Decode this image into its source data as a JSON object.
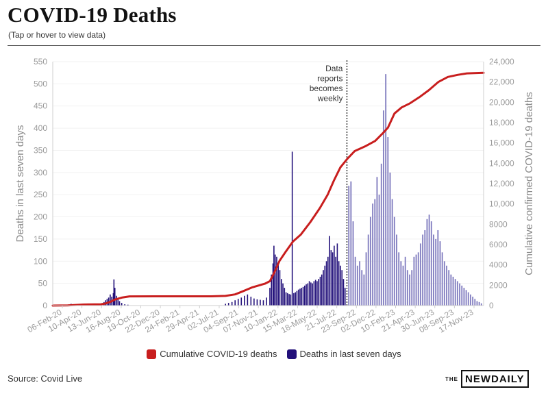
{
  "header": {
    "title": "COVID-19 Deaths",
    "subtitle": "(Tap or hover to view data)"
  },
  "footer": {
    "source": "Source: Covid Live",
    "brand_the": "THE",
    "brand_name": "NEWDAILY"
  },
  "colors": {
    "cumulative": "#c81e1e",
    "weekly": "#22107a",
    "weekly_after": "#8a86c4",
    "grid": "#f2f2f2",
    "axis": "#cfcfcf"
  },
  "chart_data": {
    "type": "bar",
    "combo": "bar + line, dual y-axis",
    "legend_position": "bottom",
    "grid": true,
    "xlabel": "",
    "ylabel_left": "Deaths in last seven days",
    "ylabel_right": "Cumulative confirmed COVID-19 deaths",
    "ylim_left": [
      0,
      550
    ],
    "ylim_right": [
      0,
      24000
    ],
    "yticks_left": [
      "0",
      "50",
      "100",
      "150",
      "200",
      "250",
      "300",
      "350",
      "400",
      "450",
      "500",
      "550"
    ],
    "yticks_right": [
      "0",
      "2000",
      "4000",
      "6000",
      "8000",
      "10,000",
      "12,000",
      "14,000",
      "16,000",
      "18,000",
      "20,000",
      "22,000",
      "24,000"
    ],
    "x_range": [
      "2020-02-06",
      "2023-11-24"
    ],
    "xticks": [
      "06-Feb-20",
      "10-Apr-20",
      "13-Jun-20",
      "16-Aug-20",
      "19-Oct-20",
      "22-Dec-20",
      "24-Feb-21",
      "29-Apr-21",
      "02-Jul-21",
      "04-Sep-21",
      "07-Nov-21",
      "10-Jan-22",
      "15-Mar-22",
      "18-May-22",
      "21-Jul-22",
      "23-Sep-22",
      "02-Dec-22",
      "10-Feb-23",
      "21-Apr-23",
      "30-Jun-23",
      "08-Sep-23",
      "17-Nov-23"
    ],
    "annotation": {
      "date": "2022-09-10",
      "lines": [
        "Data",
        "reports",
        "becomes",
        "weekly"
      ]
    },
    "series": [
      {
        "name": "Cumulative COVID-19 deaths",
        "kind": "line",
        "axis": "right",
        "points": [
          [
            "2020-02-06",
            0
          ],
          [
            "2020-03-25",
            20
          ],
          [
            "2020-05-15",
            100
          ],
          [
            "2020-07-10",
            130
          ],
          [
            "2020-07-25",
            200
          ],
          [
            "2020-08-10",
            380
          ],
          [
            "2020-08-25",
            600
          ],
          [
            "2020-09-15",
            780
          ],
          [
            "2020-10-10",
            905
          ],
          [
            "2020-12-31",
            910
          ],
          [
            "2021-06-30",
            910
          ],
          [
            "2021-08-15",
            950
          ],
          [
            "2021-09-15",
            1100
          ],
          [
            "2021-10-10",
            1400
          ],
          [
            "2021-11-10",
            1800
          ],
          [
            "2021-12-20",
            2150
          ],
          [
            "2022-01-05",
            2400
          ],
          [
            "2022-01-20",
            3300
          ],
          [
            "2022-02-05",
            4400
          ],
          [
            "2022-02-25",
            5300
          ],
          [
            "2022-03-20",
            6300
          ],
          [
            "2022-04-15",
            7000
          ],
          [
            "2022-05-15",
            8200
          ],
          [
            "2022-06-15",
            9600
          ],
          [
            "2022-07-10",
            10900
          ],
          [
            "2022-07-30",
            12300
          ],
          [
            "2022-08-20",
            13600
          ],
          [
            "2022-09-10",
            14400
          ],
          [
            "2022-10-05",
            15200
          ],
          [
            "2022-11-10",
            15700
          ],
          [
            "2022-12-10",
            16200
          ],
          [
            "2023-01-05",
            17000
          ],
          [
            "2023-01-20",
            17500
          ],
          [
            "2023-02-10",
            18900
          ],
          [
            "2023-03-05",
            19500
          ],
          [
            "2023-04-01",
            19900
          ],
          [
            "2023-05-01",
            20500
          ],
          [
            "2023-06-01",
            21200
          ],
          [
            "2023-07-01",
            22000
          ],
          [
            "2023-08-01",
            22500
          ],
          [
            "2023-09-01",
            22700
          ],
          [
            "2023-10-01",
            22850
          ],
          [
            "2023-11-24",
            22900
          ]
        ]
      },
      {
        "name": "Deaths in last seven days",
        "kind": "bar",
        "axis": "left",
        "points": [
          [
            "2020-04-05",
            4
          ],
          [
            "2020-04-19",
            3
          ],
          [
            "2020-05-10",
            2
          ],
          [
            "2020-07-20",
            8
          ],
          [
            "2020-07-25",
            12
          ],
          [
            "2020-07-30",
            15
          ],
          [
            "2020-08-04",
            18
          ],
          [
            "2020-08-09",
            25
          ],
          [
            "2020-08-14",
            20
          ],
          [
            "2020-08-19",
            28
          ],
          [
            "2020-08-21",
            59
          ],
          [
            "2020-08-24",
            40
          ],
          [
            "2020-08-29",
            22
          ],
          [
            "2020-09-03",
            15
          ],
          [
            "2020-09-08",
            10
          ],
          [
            "2020-09-15",
            6
          ],
          [
            "2020-09-25",
            3
          ],
          [
            "2020-10-05",
            2
          ],
          [
            "2021-08-15",
            4
          ],
          [
            "2021-08-25",
            6
          ],
          [
            "2021-09-05",
            8
          ],
          [
            "2021-09-15",
            12
          ],
          [
            "2021-09-25",
            15
          ],
          [
            "2021-10-05",
            18
          ],
          [
            "2021-10-15",
            22
          ],
          [
            "2021-10-25",
            25
          ],
          [
            "2021-11-05",
            20
          ],
          [
            "2021-11-15",
            16
          ],
          [
            "2021-11-25",
            14
          ],
          [
            "2021-12-05",
            13
          ],
          [
            "2021-12-15",
            12
          ],
          [
            "2021-12-25",
            18
          ],
          [
            "2022-01-05",
            40
          ],
          [
            "2022-01-10",
            70
          ],
          [
            "2022-01-15",
            95
          ],
          [
            "2022-01-18",
            135
          ],
          [
            "2022-01-22",
            115
          ],
          [
            "2022-01-27",
            110
          ],
          [
            "2022-02-01",
            95
          ],
          [
            "2022-02-06",
            80
          ],
          [
            "2022-02-11",
            60
          ],
          [
            "2022-02-16",
            50
          ],
          [
            "2022-02-21",
            40
          ],
          [
            "2022-02-26",
            30
          ],
          [
            "2022-03-03",
            28
          ],
          [
            "2022-03-08",
            26
          ],
          [
            "2022-03-13",
            25
          ],
          [
            "2022-03-18",
            347
          ],
          [
            "2022-03-23",
            28
          ],
          [
            "2022-03-28",
            30
          ],
          [
            "2022-04-02",
            33
          ],
          [
            "2022-04-07",
            36
          ],
          [
            "2022-04-12",
            38
          ],
          [
            "2022-04-17",
            40
          ],
          [
            "2022-04-22",
            42
          ],
          [
            "2022-04-27",
            45
          ],
          [
            "2022-05-02",
            48
          ],
          [
            "2022-05-07",
            50
          ],
          [
            "2022-05-12",
            55
          ],
          [
            "2022-05-17",
            52
          ],
          [
            "2022-05-22",
            50
          ],
          [
            "2022-05-27",
            55
          ],
          [
            "2022-06-01",
            58
          ],
          [
            "2022-06-06",
            55
          ],
          [
            "2022-06-11",
            60
          ],
          [
            "2022-06-16",
            65
          ],
          [
            "2022-06-21",
            70
          ],
          [
            "2022-06-26",
            80
          ],
          [
            "2022-07-01",
            90
          ],
          [
            "2022-07-06",
            100
          ],
          [
            "2022-07-11",
            110
          ],
          [
            "2022-07-16",
            157
          ],
          [
            "2022-07-21",
            125
          ],
          [
            "2022-07-26",
            120
          ],
          [
            "2022-07-31",
            135
          ],
          [
            "2022-08-05",
            110
          ],
          [
            "2022-08-10",
            140
          ],
          [
            "2022-08-15",
            100
          ],
          [
            "2022-08-20",
            90
          ],
          [
            "2022-08-25",
            80
          ],
          [
            "2022-08-30",
            60
          ],
          [
            "2022-09-04",
            40
          ],
          [
            "2022-09-16",
            270
          ],
          [
            "2022-09-23",
            280
          ],
          [
            "2022-09-30",
            190
          ],
          [
            "2022-10-07",
            110
          ],
          [
            "2022-10-14",
            90
          ],
          [
            "2022-10-21",
            100
          ],
          [
            "2022-10-28",
            80
          ],
          [
            "2022-11-04",
            70
          ],
          [
            "2022-11-11",
            120
          ],
          [
            "2022-11-18",
            160
          ],
          [
            "2022-11-25",
            200
          ],
          [
            "2022-12-02",
            230
          ],
          [
            "2022-12-09",
            240
          ],
          [
            "2022-12-16",
            290
          ],
          [
            "2022-12-23",
            250
          ],
          [
            "2022-12-30",
            320
          ],
          [
            "2023-01-06",
            440
          ],
          [
            "2023-01-13",
            522
          ],
          [
            "2023-01-20",
            380
          ],
          [
            "2023-01-27",
            300
          ],
          [
            "2023-02-03",
            240
          ],
          [
            "2023-02-10",
            200
          ],
          [
            "2023-02-17",
            160
          ],
          [
            "2023-02-24",
            120
          ],
          [
            "2023-03-03",
            100
          ],
          [
            "2023-03-10",
            90
          ],
          [
            "2023-03-17",
            110
          ],
          [
            "2023-03-24",
            80
          ],
          [
            "2023-03-31",
            70
          ],
          [
            "2023-04-07",
            80
          ],
          [
            "2023-04-14",
            110
          ],
          [
            "2023-04-21",
            115
          ],
          [
            "2023-04-28",
            120
          ],
          [
            "2023-05-05",
            140
          ],
          [
            "2023-05-12",
            160
          ],
          [
            "2023-05-19",
            170
          ],
          [
            "2023-05-26",
            195
          ],
          [
            "2023-06-02",
            205
          ],
          [
            "2023-06-09",
            190
          ],
          [
            "2023-06-16",
            160
          ],
          [
            "2023-06-23",
            150
          ],
          [
            "2023-06-30",
            170
          ],
          [
            "2023-07-07",
            145
          ],
          [
            "2023-07-14",
            120
          ],
          [
            "2023-07-21",
            100
          ],
          [
            "2023-07-28",
            90
          ],
          [
            "2023-08-04",
            80
          ],
          [
            "2023-08-11",
            70
          ],
          [
            "2023-08-18",
            65
          ],
          [
            "2023-08-25",
            60
          ],
          [
            "2023-09-01",
            55
          ],
          [
            "2023-09-08",
            50
          ],
          [
            "2023-09-15",
            45
          ],
          [
            "2023-09-22",
            40
          ],
          [
            "2023-09-29",
            35
          ],
          [
            "2023-10-06",
            30
          ],
          [
            "2023-10-13",
            25
          ],
          [
            "2023-10-20",
            20
          ],
          [
            "2023-10-27",
            15
          ],
          [
            "2023-11-03",
            10
          ],
          [
            "2023-11-10",
            8
          ],
          [
            "2023-11-17",
            5
          ]
        ]
      }
    ]
  }
}
